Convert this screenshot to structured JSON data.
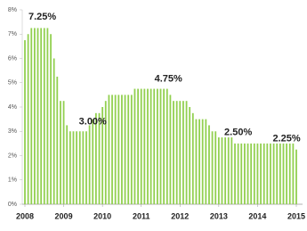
{
  "chart_data": {
    "type": "bar",
    "x": [
      2008,
      2008.083,
      2008.167,
      2008.25,
      2008.333,
      2008.417,
      2008.5,
      2008.583,
      2008.667,
      2008.75,
      2008.833,
      2008.917,
      2009,
      2009.083,
      2009.167,
      2009.25,
      2009.333,
      2009.417,
      2009.5,
      2009.583,
      2009.667,
      2009.75,
      2009.833,
      2009.917,
      2010,
      2010.083,
      2010.167,
      2010.25,
      2010.333,
      2010.417,
      2010.5,
      2010.583,
      2010.667,
      2010.75,
      2010.833,
      2010.917,
      2011,
      2011.083,
      2011.167,
      2011.25,
      2011.333,
      2011.417,
      2011.5,
      2011.583,
      2011.667,
      2011.75,
      2011.833,
      2011.917,
      2012,
      2012.083,
      2012.167,
      2012.25,
      2012.333,
      2012.417,
      2012.5,
      2012.583,
      2012.667,
      2012.75,
      2012.833,
      2012.917,
      2013,
      2013.083,
      2013.167,
      2013.25,
      2013.333,
      2013.417,
      2013.5,
      2013.583,
      2013.667,
      2013.75,
      2013.833,
      2013.917,
      2014,
      2014.083,
      2014.167,
      2014.25,
      2014.333,
      2014.417,
      2014.5,
      2014.583,
      2014.667,
      2014.75,
      2014.833,
      2014.917,
      2015
    ],
    "values": [
      6.75,
      7,
      7.25,
      7.25,
      7.25,
      7.25,
      7.25,
      7.25,
      7,
      6,
      5.25,
      4.25,
      4.25,
      3.25,
      3,
      3,
      3,
      3,
      3,
      3,
      3.25,
      3.5,
      3.75,
      3.75,
      4,
      4.25,
      4.5,
      4.5,
      4.5,
      4.5,
      4.5,
      4.5,
      4.5,
      4.5,
      4.75,
      4.75,
      4.75,
      4.75,
      4.75,
      4.75,
      4.75,
      4.75,
      4.75,
      4.75,
      4.75,
      4.5,
      4.25,
      4.25,
      4.25,
      4.25,
      4.25,
      4,
      3.75,
      3.5,
      3.5,
      3.5,
      3.5,
      3.25,
      3,
      3,
      2.75,
      2.75,
      2.75,
      2.75,
      2.75,
      2.5,
      2.5,
      2.5,
      2.5,
      2.5,
      2.5,
      2.5,
      2.5,
      2.5,
      2.5,
      2.5,
      2.5,
      2.5,
      2.5,
      2.5,
      2.5,
      2.5,
      2.5,
      2.5,
      2.25
    ],
    "color": "#92d050",
    "xlim": [
      2008,
      2015
    ],
    "xticks": [
      2008,
      2009,
      2010,
      2011,
      2012,
      2013,
      2014,
      2015
    ],
    "ylim": [
      0,
      8
    ],
    "yticks": [
      {
        "value": 0,
        "label": "0%"
      },
      {
        "value": 1,
        "label": "1%"
      },
      {
        "value": 2,
        "label": "2%"
      },
      {
        "value": 3,
        "label": "3%"
      },
      {
        "value": 4,
        "label": "4%"
      },
      {
        "value": 5,
        "label": "5%"
      },
      {
        "value": 6,
        "label": "6%"
      },
      {
        "value": 7,
        "label": "7%"
      },
      {
        "value": 8,
        "label": "8%"
      }
    ],
    "annotations": [
      {
        "text": "7.25%",
        "x": 2008.45,
        "y": 7.7
      },
      {
        "text": "3.00%",
        "x": 2009.75,
        "y": 3.4
      },
      {
        "text": "4.75%",
        "x": 2011.7,
        "y": 5.15
      },
      {
        "text": "2.50%",
        "x": 2013.5,
        "y": 2.95
      },
      {
        "text": "2.25%",
        "x": 2014.75,
        "y": 2.7
      }
    ]
  }
}
